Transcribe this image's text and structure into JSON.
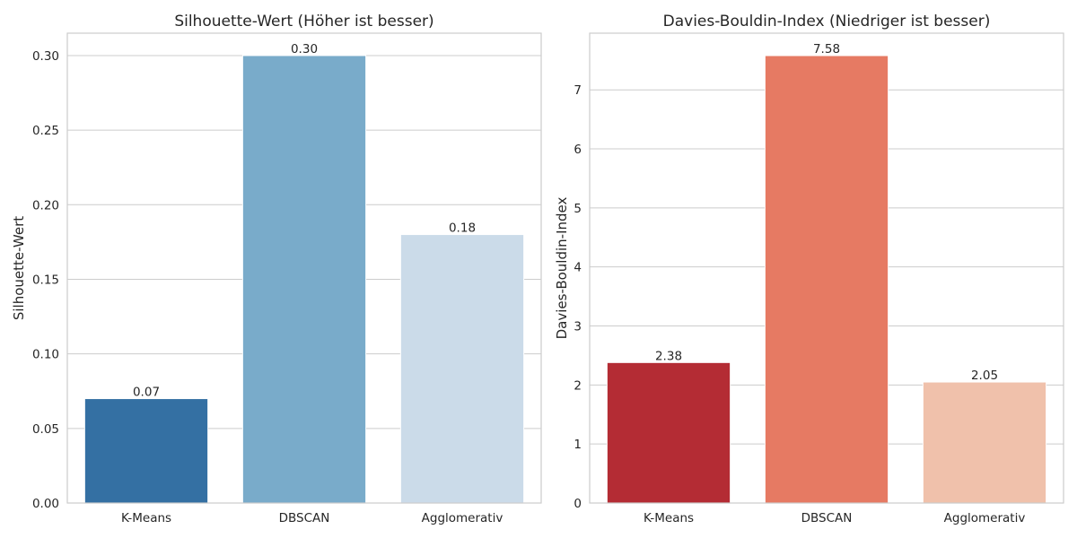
{
  "chart_data": [
    {
      "type": "bar",
      "title": "Silhouette-Wert (Höher ist besser)",
      "xlabel": "",
      "ylabel": "Silhouette-Wert",
      "categories": [
        "K-Means",
        "DBSCAN",
        "Agglomerativ"
      ],
      "values": [
        0.07,
        0.3,
        0.18
      ],
      "value_labels": [
        "0.07",
        "0.30",
        "0.18"
      ],
      "colors": [
        "#3470a3",
        "#79abca",
        "#cbdbe9"
      ],
      "ylim": [
        0,
        0.315
      ],
      "yticks": [
        0,
        0.05,
        0.1,
        0.15,
        0.2,
        0.25,
        0.3
      ],
      "ytick_labels": [
        "0.00",
        "0.05",
        "0.10",
        "0.15",
        "0.20",
        "0.25",
        "0.30"
      ],
      "grid": "horizontal"
    },
    {
      "type": "bar",
      "title": "Davies-Bouldin-Index (Niedriger ist besser)",
      "xlabel": "",
      "ylabel": "Davies-Bouldin-Index",
      "categories": [
        "K-Means",
        "DBSCAN",
        "Agglomerativ"
      ],
      "values": [
        2.38,
        7.58,
        2.05
      ],
      "value_labels": [
        "2.38",
        "7.58",
        "2.05"
      ],
      "colors": [
        "#b42c34",
        "#e67a63",
        "#f0c1ab"
      ],
      "ylim": [
        0,
        7.96
      ],
      "yticks": [
        0,
        1,
        2,
        3,
        4,
        5,
        6,
        7
      ],
      "ytick_labels": [
        "0",
        "1",
        "2",
        "3",
        "4",
        "5",
        "6",
        "7"
      ],
      "grid": "horizontal"
    }
  ]
}
